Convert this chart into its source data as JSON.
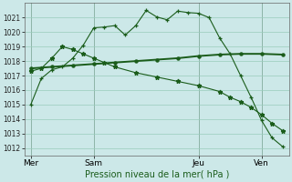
{
  "background_color": "#cce8e8",
  "grid_color": "#99ccbb",
  "line_color": "#1a5c1a",
  "title": "Pression niveau de la mer( hPa )",
  "ylim": [
    1011.5,
    1022.0
  ],
  "yticks": [
    1012,
    1013,
    1014,
    1015,
    1016,
    1017,
    1018,
    1019,
    1020,
    1021
  ],
  "xtick_labels": [
    "Mer",
    "Sam",
    "Jeu",
    "Ven"
  ],
  "xtick_positions": [
    0,
    3,
    8,
    11
  ],
  "vline_positions": [
    0,
    3,
    8,
    11
  ],
  "line1_x": [
    0,
    0.5,
    1.0,
    1.5,
    2.0,
    2.5,
    3.0,
    3.5,
    4.0,
    4.5,
    5.0,
    5.5,
    6.0,
    6.5,
    7.0,
    7.5,
    8.0,
    8.5,
    9.0,
    9.5,
    10.0,
    10.5,
    11.0,
    11.5,
    12.0
  ],
  "line1_y": [
    1015.0,
    1016.8,
    1017.4,
    1017.6,
    1018.2,
    1019.1,
    1020.3,
    1020.35,
    1020.45,
    1019.8,
    1020.45,
    1021.5,
    1021.05,
    1020.85,
    1021.45,
    1021.35,
    1021.3,
    1021.0,
    1019.6,
    1018.5,
    1017.0,
    1015.5,
    1013.9,
    1012.7,
    1012.1
  ],
  "line2_x": [
    0,
    1,
    2,
    3,
    4,
    5,
    6,
    7,
    8,
    9,
    10,
    11,
    12
  ],
  "line2_y": [
    1017.5,
    1017.6,
    1017.7,
    1017.8,
    1017.9,
    1018.0,
    1018.1,
    1018.2,
    1018.35,
    1018.45,
    1018.5,
    1018.5,
    1018.45
  ],
  "line3_x": [
    0,
    0.5,
    1.0,
    1.5,
    2.0,
    2.5,
    3.0,
    3.5,
    4.0,
    5.0,
    6.0,
    7.0,
    8.0,
    9.0,
    9.5,
    10.0,
    10.5,
    11.0,
    11.5,
    12.0
  ],
  "line3_y": [
    1017.3,
    1017.5,
    1018.2,
    1019.0,
    1018.8,
    1018.5,
    1018.2,
    1017.9,
    1017.6,
    1017.2,
    1016.9,
    1016.6,
    1016.3,
    1015.9,
    1015.5,
    1015.2,
    1014.8,
    1014.3,
    1013.7,
    1013.2
  ],
  "figsize": [
    3.2,
    2.0
  ],
  "dpi": 100
}
